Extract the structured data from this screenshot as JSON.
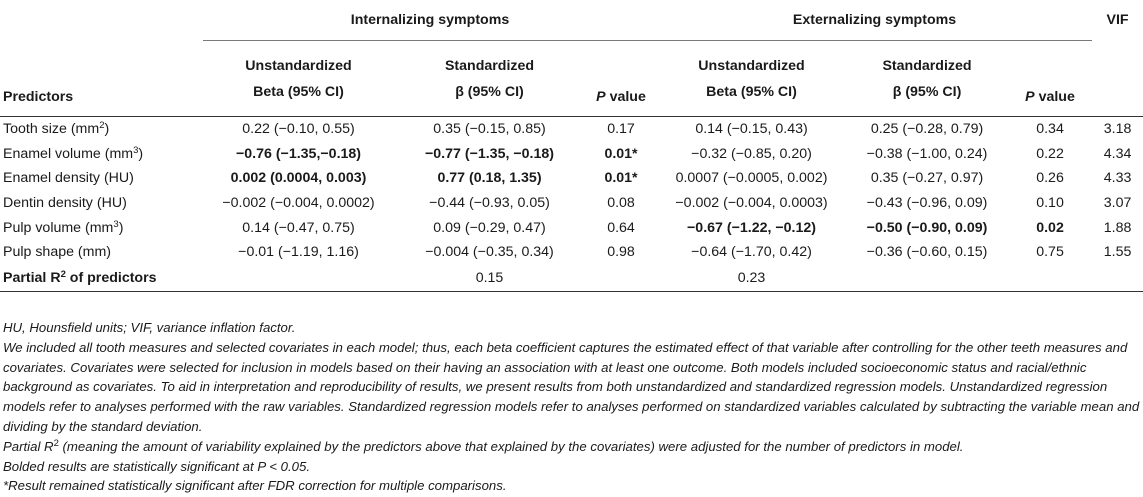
{
  "header": {
    "group_internalizing": "Internalizing symptoms",
    "group_externalizing": "Externalizing symptoms",
    "vif": "VIF",
    "predictors": "Predictors",
    "unstd_line1": "Unstandardized",
    "unstd_line2": "Beta (95% CI)",
    "std_line1": "Standardized",
    "std_line2": "β (95% CI)",
    "p_italic": "P",
    "p_rest": " value"
  },
  "rows": [
    {
      "label": "Tooth size (mm",
      "sup": "2",
      "label_end": ")",
      "int_unstd": "0.22 (−0.10, 0.55)",
      "int_std": "0.35 (−0.15, 0.85)",
      "int_p": "0.17",
      "ext_unstd": "0.14 (−0.15, 0.43)",
      "ext_std": "0.25 (−0.28, 0.79)",
      "ext_p": "0.34",
      "vif": "3.18"
    },
    {
      "label": "Enamel volume (mm",
      "sup": "3",
      "label_end": ")",
      "int_unstd": "−0.76 (−1.35,−0.18)",
      "int_std": "−0.77 (−1.35, −0.18)",
      "int_p": "0.01*",
      "ext_unstd": "−0.32 (−0.85, 0.20)",
      "ext_std": "−0.38 (−1.00, 0.24)",
      "ext_p": "0.22",
      "vif": "4.34"
    },
    {
      "label": "Enamel density (HU)",
      "sup": "",
      "label_end": "",
      "int_unstd": "0.002 (0.0004, 0.003)",
      "int_std": "0.77 (0.18, 1.35)",
      "int_p": "0.01*",
      "ext_unstd": "0.0007 (−0.0005, 0.002)",
      "ext_std": "0.35 (−0.27, 0.97)",
      "ext_p": "0.26",
      "vif": "4.33"
    },
    {
      "label": "Dentin density (HU)",
      "sup": "",
      "label_end": "",
      "int_unstd": "−0.002 (−0.004, 0.0002)",
      "int_std": "−0.44 (−0.93, 0.05)",
      "int_p": "0.08",
      "ext_unstd": "−0.002 (−0.004, 0.0003)",
      "ext_std": "−0.43 (−0.96, 0.09)",
      "ext_p": "0.10",
      "vif": "3.07"
    },
    {
      "label": "Pulp volume (mm",
      "sup": "3",
      "label_end": ")",
      "int_unstd": "0.14 (−0.47, 0.75)",
      "int_std": "0.09 (−0.29, 0.47)",
      "int_p": "0.64",
      "ext_unstd": "−0.67 (−1.22, −0.12)",
      "ext_std": "−0.50 (−0.90, 0.09)",
      "ext_p": "0.02",
      "vif": "1.88"
    },
    {
      "label": "Pulp shape (mm)",
      "sup": "",
      "label_end": "",
      "int_unstd": "−0.01 (−1.19, 1.16)",
      "int_std": "−0.004 (−0.35, 0.34)",
      "int_p": "0.98",
      "ext_unstd": "−0.64 (−1.70, 0.42)",
      "ext_std": "−0.36 (−0.60, 0.15)",
      "ext_p": "0.75",
      "vif": "1.55"
    }
  ],
  "partial": {
    "label_pre": "Partial R",
    "label_sup": "2",
    "label_post": " of predictors",
    "int": "0.15",
    "ext": "0.23"
  },
  "notes": {
    "n1": "HU, Hounsfield units; VIF, variance inflation factor.",
    "n2": "We included all tooth measures and selected covariates in each model; thus, each beta coefficient captures the estimated effect of that variable after controlling for the other teeth measures and covariates. Covariates were selected for inclusion in models based on their having an association with at least one outcome. Both models included socioeconomic status and racial/ethnic background as covariates. To aid in interpretation and reproducibility of results, we present results from both unstandardized and standardized regression models. Unstandardized regression models refer to analyses performed with the raw variables. Standardized regression models refer to analyses performed on standardized variables calculated by subtracting the variable mean and dividing by the standard deviation.",
    "n3_pre": "Partial R",
    "n3_sup": "2",
    "n3_post": " (meaning the amount of variability explained by the predictors above that explained by the covariates) were adjusted for the number of predictors in model.",
    "n4": "Bolded results are statistically significant at P < 0.05.",
    "n5": "*Result remained statistically significant after FDR correction for multiple comparisons."
  }
}
